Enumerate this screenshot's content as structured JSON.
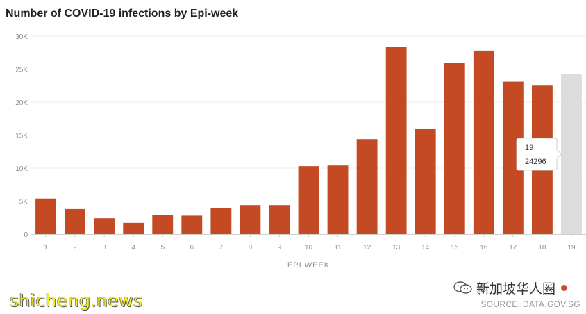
{
  "title": "Number of COVID-19 infections by Epi-week",
  "source": "SOURCE: DATA.GOV.SG",
  "watermark": "shicheng.news",
  "channel": {
    "name": "新加坡华人圈",
    "icon": "wechat-icon"
  },
  "colors": {
    "bar": "#c44a24",
    "highlight": "#dcdcdc",
    "grid": "#ececec",
    "axis": "#8a8a8a"
  },
  "chart_data": {
    "type": "bar",
    "title": "Number of COVID-19 infections by Epi-week",
    "xlabel": "EPI WEEK",
    "ylabel": "",
    "categories": [
      "1",
      "2",
      "3",
      "4",
      "5",
      "6",
      "7",
      "8",
      "9",
      "10",
      "11",
      "12",
      "13",
      "14",
      "15",
      "16",
      "17",
      "18",
      "19"
    ],
    "values": [
      5400,
      3800,
      2400,
      1700,
      2900,
      2800,
      4000,
      4400,
      4400,
      10300,
      10400,
      14400,
      28400,
      16000,
      26000,
      27800,
      23100,
      22500,
      24296
    ],
    "highlight_index": 18,
    "ylim": [
      0,
      30000
    ],
    "yticks": [
      {
        "value": 0,
        "label": "0"
      },
      {
        "value": 5000,
        "label": "5K"
      },
      {
        "value": 10000,
        "label": "10K"
      },
      {
        "value": 15000,
        "label": "15K"
      },
      {
        "value": 20000,
        "label": "20K"
      },
      {
        "value": 25000,
        "label": "25K"
      },
      {
        "value": 30000,
        "label": "30K"
      }
    ],
    "grid": true,
    "tooltip": {
      "category": "19",
      "value": "24296"
    }
  }
}
